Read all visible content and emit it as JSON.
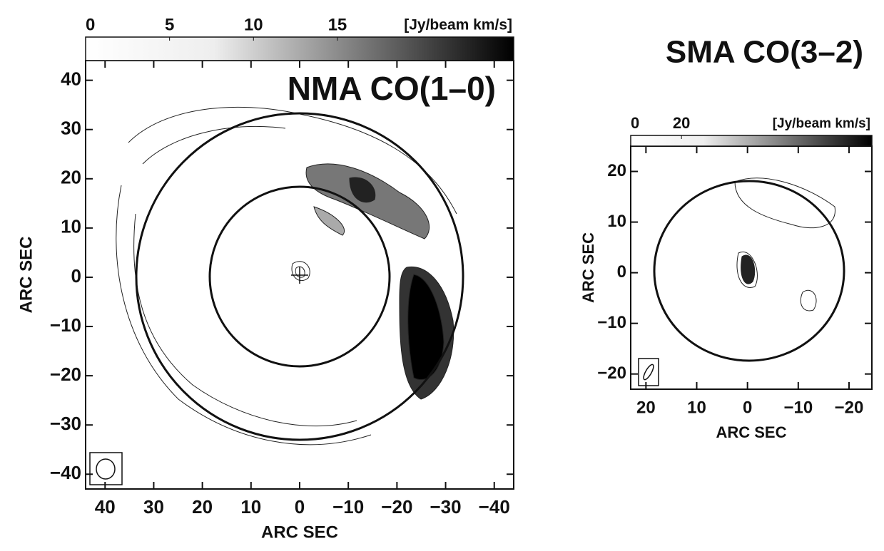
{
  "chart_data": [
    {
      "type": "contour",
      "title": "NMA CO(1–0)",
      "xlabel": "ARC SEC",
      "ylabel": "ARC SEC",
      "xlim": [
        44,
        -44
      ],
      "ylim": [
        -43,
        44
      ],
      "xticks": [
        40,
        30,
        20,
        10,
        0,
        {
          "value": -10,
          "label": "−10"
        },
        {
          "value": -20,
          "label": "−20"
        },
        {
          "value": -30,
          "label": "−30"
        },
        {
          "value": -40,
          "label": "−40"
        }
      ],
      "yticks": [
        {
          "value": -40,
          "label": "−40"
        },
        {
          "value": -30,
          "label": "−30"
        },
        {
          "value": -20,
          "label": "−20"
        },
        {
          "value": -10,
          "label": "−10"
        },
        0,
        10,
        20,
        30,
        40
      ],
      "colorbar": {
        "label": "[Jy/beam km/s]",
        "lim": [
          0,
          25.5
        ],
        "ticks": [
          0,
          5,
          10,
          15
        ]
      }
    },
    {
      "type": "contour",
      "title": "SMA CO(3–2)",
      "xlabel": "ARC SEC",
      "ylabel": "ARC SEC",
      "xlim": [
        23,
        -24.5
      ],
      "ylim": [
        -23,
        25
      ],
      "xticks": [
        20,
        10,
        0,
        {
          "value": -10,
          "label": "−10"
        },
        {
          "value": -20,
          "label": "−20"
        }
      ],
      "yticks": [
        {
          "value": -20,
          "label": "−20"
        },
        {
          "value": -10,
          "label": "−10"
        },
        0,
        10,
        20
      ],
      "colorbar": {
        "label": "[Jy/beam km/s]",
        "lim": [
          0,
          95
        ],
        "ticks": [
          0,
          20
        ]
      }
    }
  ]
}
